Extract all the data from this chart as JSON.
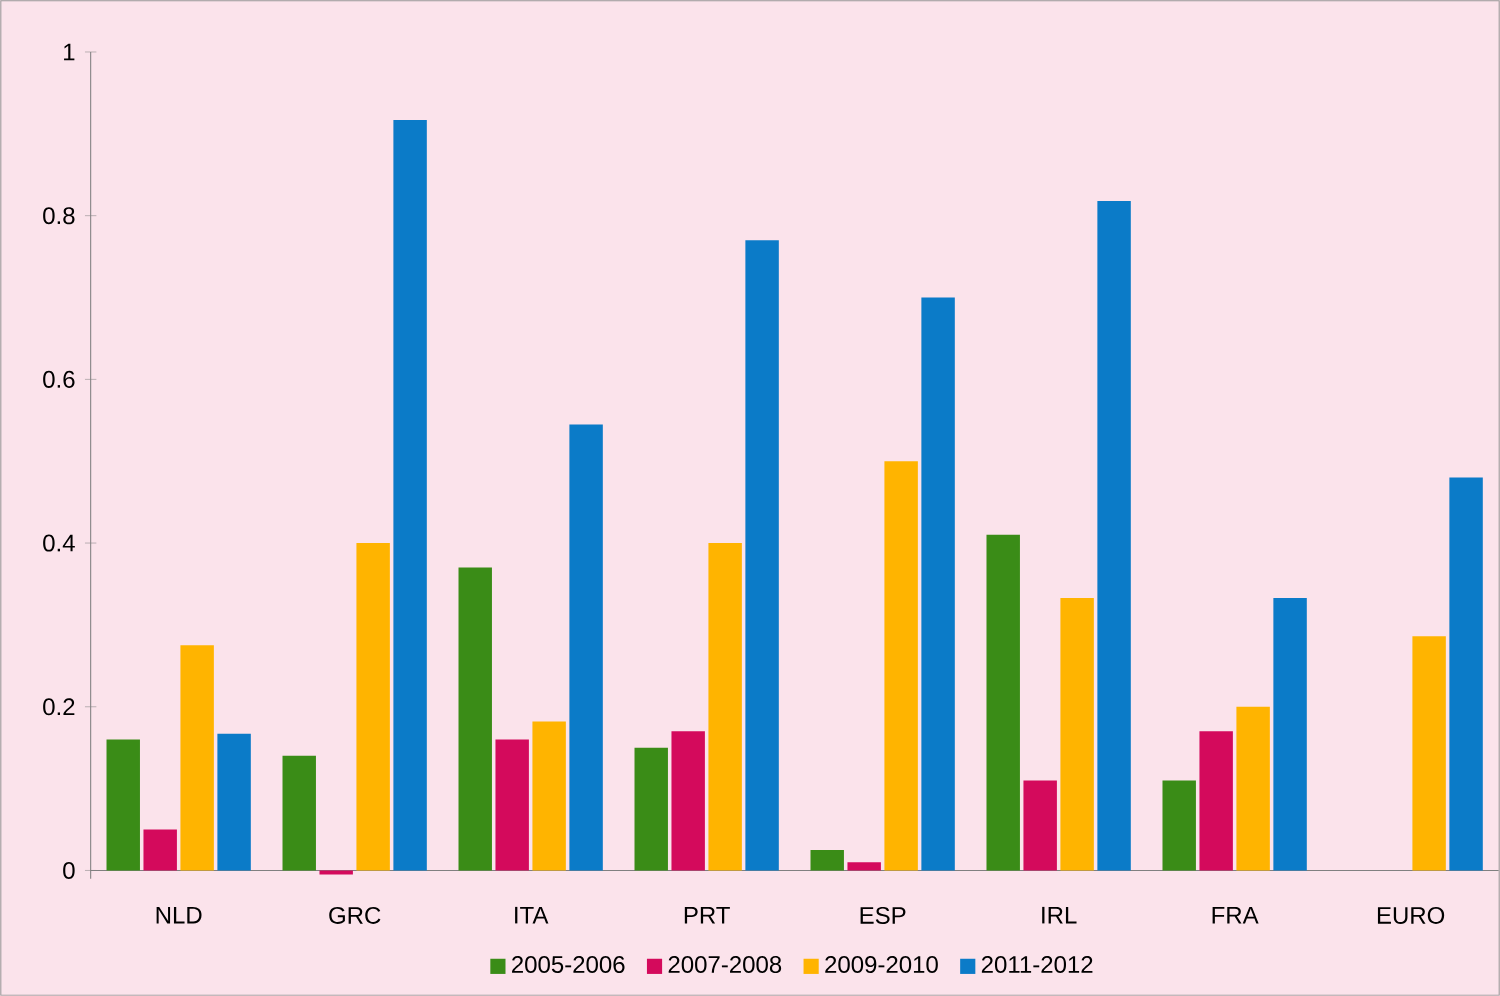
{
  "chart_data": {
    "type": "bar",
    "categories": [
      "NLD",
      "GRC",
      "ITA",
      "PRT",
      "ESP",
      "IRL",
      "FRA",
      "EURO"
    ],
    "series": [
      {
        "name": "2005-2006",
        "color": "#3a8c17",
        "values": [
          0.16,
          0.14,
          0.37,
          0.15,
          0.025,
          0.41,
          0.11,
          null
        ]
      },
      {
        "name": "2007-2008",
        "color": "#d40a5c",
        "values": [
          0.05,
          -0.005,
          0.16,
          0.17,
          0.01,
          0.11,
          0.17,
          null
        ]
      },
      {
        "name": "2009-2010",
        "color": "#ffb400",
        "values": [
          0.275,
          0.4,
          0.182,
          0.4,
          0.5,
          0.333,
          0.2,
          0.286
        ]
      },
      {
        "name": "2011-2012",
        "color": "#0b7bc8",
        "values": [
          0.167,
          0.917,
          0.545,
          0.77,
          0.7,
          0.818,
          0.333,
          0.48
        ]
      }
    ],
    "ylim": [
      -0.01,
      1
    ],
    "yticks": [
      0,
      0.2,
      0.4,
      0.6,
      0.8,
      1
    ],
    "grid": false,
    "legend": "bottom"
  }
}
